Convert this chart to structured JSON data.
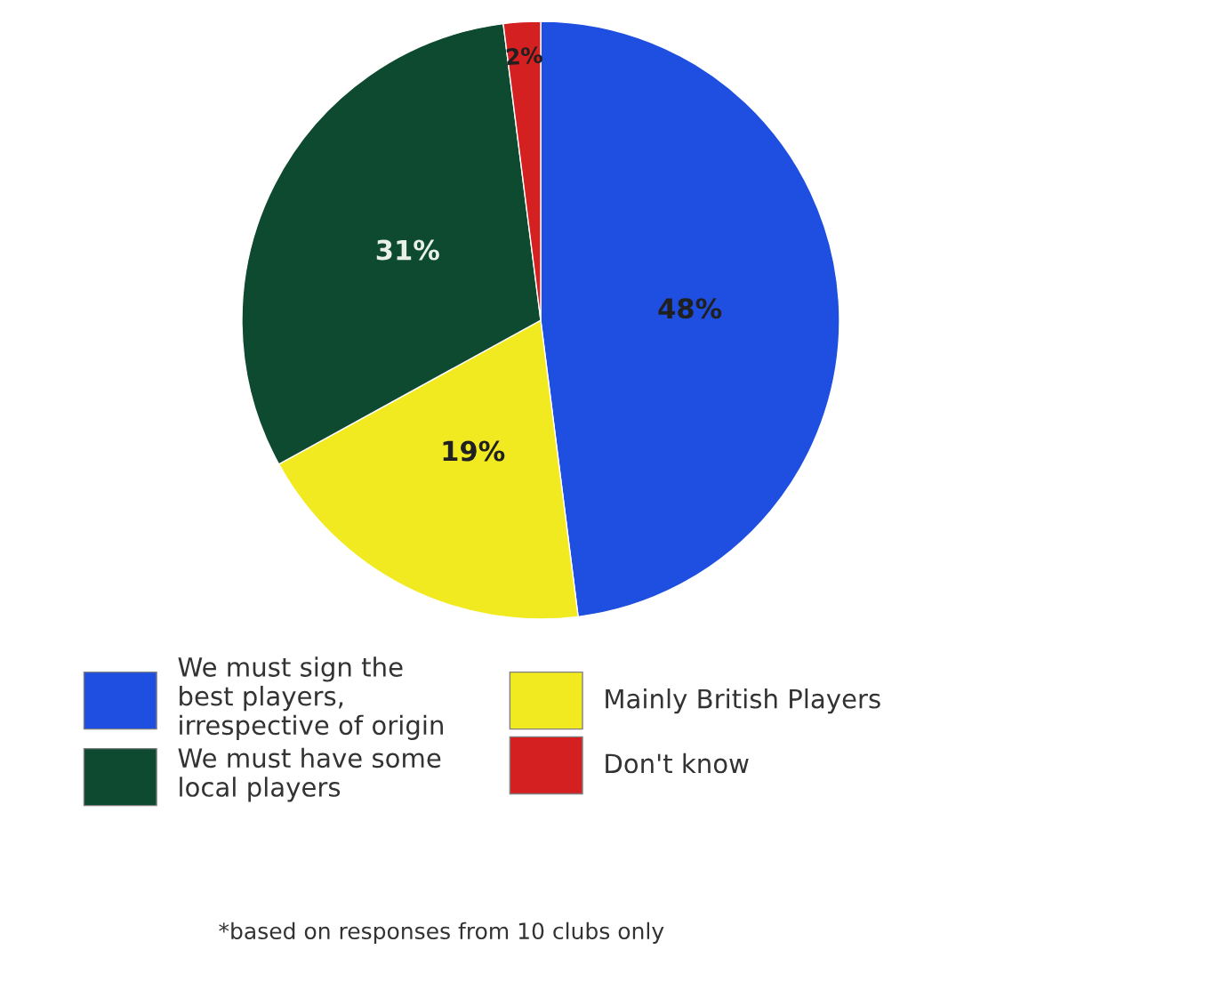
{
  "chart_data": {
    "type": "pie",
    "categories": [
      "We must sign the\nbest players,\nirrespective of origin",
      "Mainly British Players",
      "We must have some\nlocal players",
      "Don't know"
    ],
    "values": [
      48,
      19,
      31,
      2
    ],
    "colors": [
      "#1f4fe0",
      "#f2ea20",
      "#0d4a30",
      "#d42020"
    ],
    "value_labels": [
      "48%",
      "19%",
      "31%",
      "2%"
    ],
    "legend": "bottom",
    "annotations": [
      "*based on responses from 10 clubs only"
    ]
  }
}
